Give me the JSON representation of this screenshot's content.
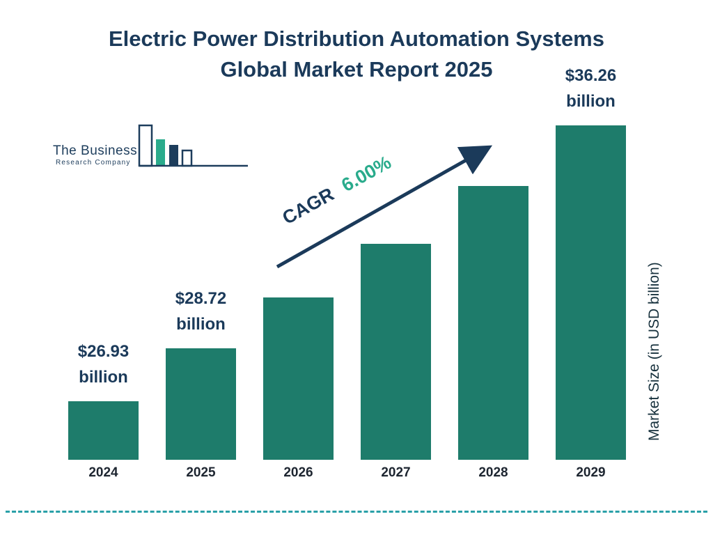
{
  "title": {
    "line1": "Electric Power Distribution Automation Systems",
    "line2": "Global Market Report 2025"
  },
  "logo": {
    "line1": "The Business",
    "line2": "Research Company"
  },
  "cagr": {
    "label": "CAGR",
    "value": "6.00%"
  },
  "y_axis_label": "Market Size (in USD billion)",
  "colors": {
    "bar_teal": "#1e7c6b",
    "title_navy": "#1b3a5a",
    "cagr_green": "#2aab8c",
    "dashed_line": "#2aa0a8"
  },
  "chart_data": {
    "type": "bar",
    "title": "Electric Power Distribution Automation Systems Global Market Report 2025",
    "categories": [
      "2024",
      "2025",
      "2026",
      "2027",
      "2028",
      "2029"
    ],
    "values": [
      26.93,
      28.72,
      30.44,
      32.27,
      34.21,
      36.26
    ],
    "data_labels": [
      {
        "line1": "$26.93",
        "line2": "billion"
      },
      {
        "line1": "$28.72",
        "line2": "billion"
      },
      null,
      null,
      null,
      {
        "line1": "$36.26",
        "line2": "billion"
      }
    ],
    "xlabel": "",
    "ylabel": "Market Size (in USD billion)",
    "ylim": [
      0,
      40
    ],
    "grid": false,
    "legend": "none",
    "annotation": "CAGR 6.00%"
  }
}
